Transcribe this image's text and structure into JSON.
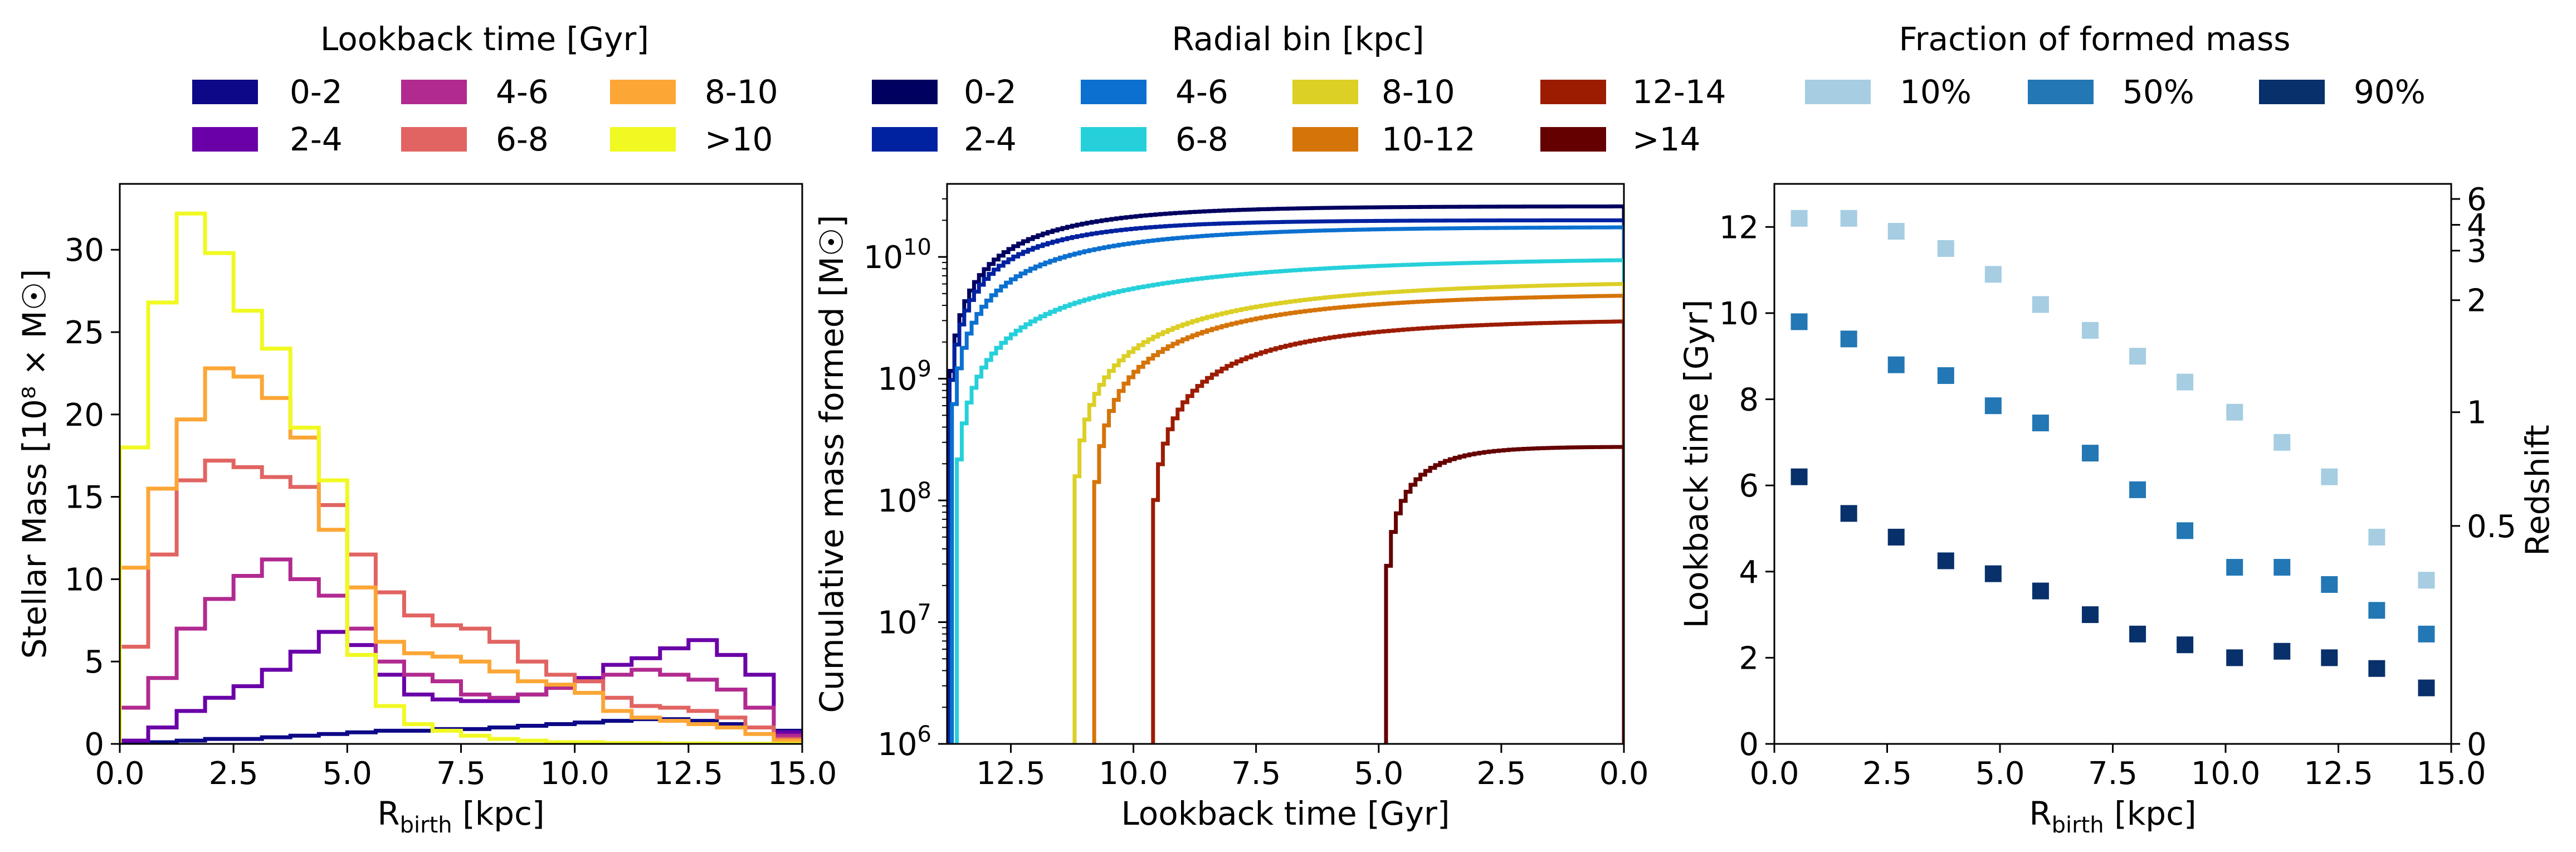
{
  "figure": {
    "legends": [
      {
        "title": "Lookback time [Gyr]",
        "entries": [
          {
            "label": "0-2",
            "color": "#0d0887"
          },
          {
            "label": "2-4",
            "color": "#6a00a8"
          },
          {
            "label": "4-6",
            "color": "#b12a90"
          },
          {
            "label": "6-8",
            "color": "#e16462"
          },
          {
            "label": "8-10",
            "color": "#fca636"
          },
          {
            "label": ">10",
            "color": "#f0f921"
          }
        ]
      },
      {
        "title": "Radial bin [kpc]",
        "entries": [
          {
            "label": "0-2",
            "color": "#000060"
          },
          {
            "label": "2-4",
            "color": "#0022a0"
          },
          {
            "label": "4-6",
            "color": "#0c70d0"
          },
          {
            "label": "6-8",
            "color": "#26d0da"
          },
          {
            "label": "8-10",
            "color": "#dccf26"
          },
          {
            "label": "10-12",
            "color": "#d57408"
          },
          {
            "label": "12-14",
            "color": "#9c1c02"
          },
          {
            "label": ">14",
            "color": "#650000"
          }
        ]
      },
      {
        "title": "Fraction of formed mass",
        "entries": [
          {
            "label": "10%",
            "color": "#a6cde2"
          },
          {
            "label": "50%",
            "color": "#2277b4"
          },
          {
            "label": "90%",
            "color": "#08306b"
          }
        ]
      }
    ]
  },
  "chart_data": [
    {
      "type": "line",
      "style": "step-histogram",
      "xlabel_main": "R",
      "xlabel_sub": "birth",
      "xlabel_unit": " [kpc]",
      "ylabel": "Stellar Mass [10⁸ × M☉]",
      "xlim": [
        0,
        15
      ],
      "ylim": [
        0,
        34
      ],
      "xticks": [
        0,
        2.5,
        5,
        7.5,
        10,
        12.5,
        15
      ],
      "xtick_labels": [
        "0.0",
        "2.5",
        "5.0",
        "7.5",
        "10.0",
        "12.5",
        "15.0"
      ],
      "yticks": [
        0,
        5,
        10,
        15,
        20,
        25,
        30
      ],
      "ytick_labels": [
        "0",
        "5",
        "10",
        "15",
        "20",
        "25",
        "30"
      ],
      "bin_edges": [
        0,
        0.625,
        1.25,
        1.875,
        2.5,
        3.125,
        3.75,
        4.375,
        5,
        5.625,
        6.25,
        6.875,
        7.5,
        8.125,
        8.75,
        9.375,
        10,
        10.625,
        11.25,
        11.875,
        12.5,
        13.125,
        13.75,
        14.375,
        15
      ],
      "series": [
        {
          "name": "0-2",
          "color": "#0d0887",
          "values": [
            0.1,
            0.1,
            0.2,
            0.3,
            0.3,
            0.4,
            0.5,
            0.6,
            0.7,
            0.8,
            0.8,
            0.9,
            0.9,
            1.0,
            1.1,
            1.2,
            1.3,
            1.4,
            1.5,
            1.5,
            1.4,
            1.2,
            1.0,
            0.8
          ]
        },
        {
          "name": "2-4",
          "color": "#6a00a8",
          "values": [
            0.2,
            1.0,
            2.0,
            2.8,
            3.5,
            4.5,
            5.6,
            6.8,
            6.0,
            4.2,
            3.0,
            2.7,
            2.6,
            2.6,
            3.0,
            3.5,
            4.0,
            4.8,
            5.2,
            5.8,
            6.3,
            5.4,
            4.2,
            0.7
          ]
        },
        {
          "name": "4-6",
          "color": "#b12a90",
          "values": [
            2.2,
            4.0,
            7.0,
            8.8,
            10.2,
            11.2,
            10.0,
            9.0,
            7.0,
            5.0,
            4.2,
            3.8,
            3.0,
            2.8,
            3.0,
            3.4,
            3.8,
            4.2,
            4.5,
            4.2,
            3.9,
            3.3,
            2.2,
            0.5
          ]
        },
        {
          "name": "6-8",
          "color": "#e16462",
          "values": [
            5.9,
            11.5,
            16.0,
            17.2,
            16.8,
            16.2,
            15.6,
            14.5,
            11.5,
            9.2,
            7.8,
            7.2,
            7.0,
            6.2,
            5.0,
            4.2,
            3.8,
            2.8,
            2.3,
            2.2,
            2.0,
            1.6,
            1.0,
            0.3
          ]
        },
        {
          "name": "8-10",
          "color": "#fca636",
          "values": [
            10.7,
            15.5,
            19.7,
            22.8,
            22.3,
            21.0,
            18.6,
            13.0,
            9.5,
            6.2,
            5.5,
            5.3,
            5.0,
            4.4,
            3.8,
            3.6,
            3.1,
            2.0,
            1.6,
            1.4,
            1.2,
            1.0,
            0.6,
            0.2
          ]
        },
        {
          "name": ">10",
          "color": "#f0f921",
          "values": [
            18.0,
            26.8,
            32.2,
            29.8,
            26.3,
            24.0,
            19.2,
            16.0,
            5.4,
            2.3,
            1.2,
            0.8,
            0.5,
            0.3,
            0.2,
            0.1,
            0.1,
            0.05,
            0.05,
            0.02,
            0.02,
            0.01,
            0.01,
            0.0
          ]
        }
      ]
    },
    {
      "type": "line",
      "style": "step-cumulative",
      "xlabel": "Lookback time [Gyr]",
      "ylabel": "Cumulative mass formed [M☉]",
      "xlim": [
        13.8,
        0
      ],
      "ylim_log10": [
        6,
        10.6
      ],
      "yscale": "log",
      "xticks": [
        12.5,
        10,
        7.5,
        5,
        2.5,
        0
      ],
      "xtick_labels": [
        "12.5",
        "10.0",
        "7.5",
        "5.0",
        "2.5",
        "0.0"
      ],
      "yticks": [
        6,
        7,
        8,
        9,
        10
      ],
      "ytick_base": "10",
      "ytick_exponents": [
        "6",
        "7",
        "8",
        "9",
        "10"
      ],
      "series": [
        {
          "name": "0-2",
          "color": "#000060",
          "start": 13.75,
          "tau": 2.2,
          "final": 26000000000.0
        },
        {
          "name": "2-4",
          "color": "#0022a0",
          "start": 13.75,
          "tau": 2.0,
          "final": 20000000000.0
        },
        {
          "name": "4-6",
          "color": "#0c70d0",
          "start": 13.7,
          "tau": 2.8,
          "final": 17500000000.0
        },
        {
          "name": "6-8",
          "color": "#26d0da",
          "start": 13.6,
          "tau": 4.5,
          "final": 9400000000.0
        },
        {
          "name": "8-10",
          "color": "#dccf26",
          "start": 11.2,
          "tau": 4.0,
          "final": 6000000000.0
        },
        {
          "name": "10-12",
          "color": "#d57408",
          "start": 10.8,
          "tau": 3.5,
          "final": 4800000000.0
        },
        {
          "name": "12-14",
          "color": "#9c1c02",
          "start": 9.6,
          "tau": 3.0,
          "final": 2950000000.0
        },
        {
          "name": ">14",
          "color": "#650000",
          "start": 4.85,
          "tau": 0.9,
          "final": 275000000.0
        }
      ]
    },
    {
      "type": "scatter",
      "xlabel_main": "R",
      "xlabel_sub": "birth",
      "xlabel_unit": " [kpc]",
      "ylabel": "Lookback time [Gyr]",
      "ylabel_right": "Redshift",
      "xlim": [
        0,
        15
      ],
      "ylim": [
        0,
        13
      ],
      "xticks": [
        0,
        2.5,
        5,
        7.5,
        10,
        12.5,
        15
      ],
      "xtick_labels": [
        "0.0",
        "2.5",
        "5.0",
        "7.5",
        "10.0",
        "12.5",
        "15.0"
      ],
      "yticks": [
        0,
        2,
        4,
        6,
        8,
        10,
        12
      ],
      "ytick_labels": [
        "0",
        "2",
        "4",
        "6",
        "8",
        "10",
        "12"
      ],
      "right_ticks": [
        {
          "label": "0",
          "lookback": 0
        },
        {
          "label": "0.5",
          "lookback": 5.06
        },
        {
          "label": "1",
          "lookback": 7.7
        },
        {
          "label": "2",
          "lookback": 10.3
        },
        {
          "label": "3",
          "lookback": 11.45
        },
        {
          "label": "4",
          "lookback": 12.05
        },
        {
          "label": "6",
          "lookback": 12.65
        }
      ],
      "x": [
        0.55,
        1.65,
        2.7,
        3.8,
        4.85,
        5.9,
        7.0,
        8.05,
        9.1,
        10.2,
        11.25,
        12.3,
        13.35,
        14.45
      ],
      "series": [
        {
          "name": "10%",
          "color": "#a6cde2",
          "values": [
            12.2,
            12.2,
            11.9,
            11.5,
            10.9,
            10.2,
            9.6,
            9.0,
            8.4,
            7.7,
            7.0,
            6.2,
            4.8,
            3.8
          ]
        },
        {
          "name": "50%",
          "color": "#2277b4",
          "values": [
            9.8,
            9.4,
            8.8,
            8.55,
            7.85,
            7.45,
            6.75,
            5.9,
            4.95,
            4.1,
            4.1,
            3.7,
            3.1,
            2.55
          ]
        },
        {
          "name": "90%",
          "color": "#08306b",
          "values": [
            6.2,
            5.35,
            4.8,
            4.25,
            3.95,
            3.55,
            3.0,
            2.55,
            2.3,
            2.0,
            2.15,
            2.0,
            1.75,
            1.3
          ]
        }
      ]
    }
  ]
}
